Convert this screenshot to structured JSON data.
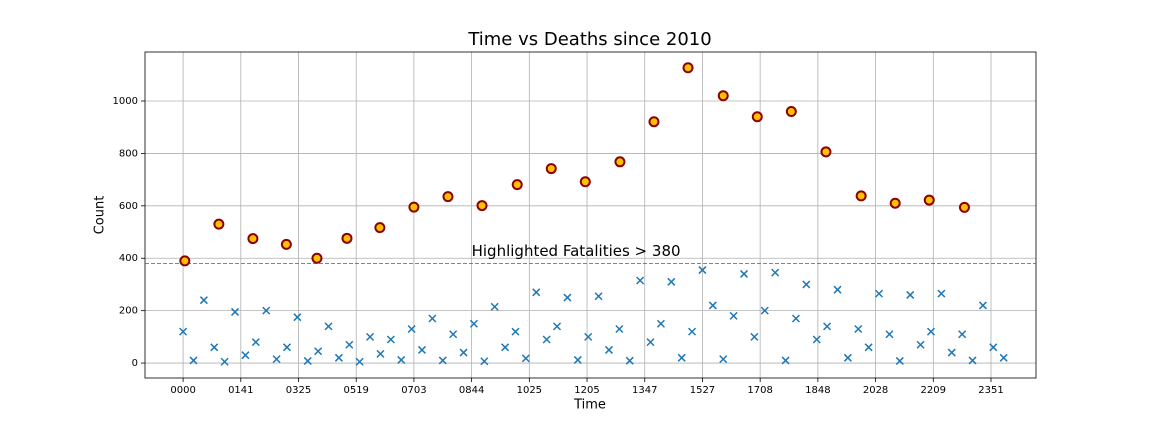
{
  "chart_data": {
    "type": "scatter",
    "title": "Time vs Deaths since 2010",
    "x_label": "Time",
    "y_label": "Count",
    "xlim": [
      -66,
      1478
    ],
    "ylim": [
      -57,
      1187
    ],
    "xticks": [
      {
        "value": 0,
        "label": "0000"
      },
      {
        "value": 100,
        "label": "0141"
      },
      {
        "value": 200,
        "label": "0325"
      },
      {
        "value": 300,
        "label": "0519"
      },
      {
        "value": 400,
        "label": "0703"
      },
      {
        "value": 500,
        "label": "0844"
      },
      {
        "value": 600,
        "label": "1025"
      },
      {
        "value": 700,
        "label": "1205"
      },
      {
        "value": 800,
        "label": "1347"
      },
      {
        "value": 900,
        "label": "1527"
      },
      {
        "value": 1000,
        "label": "1708"
      },
      {
        "value": 1100,
        "label": "1848"
      },
      {
        "value": 1200,
        "label": "2028"
      },
      {
        "value": 1300,
        "label": "2209"
      },
      {
        "value": 1400,
        "label": "2351"
      }
    ],
    "yticks": [
      0,
      200,
      400,
      600,
      800,
      1000
    ],
    "grid": true,
    "threshold": {
      "value": 380,
      "color": "#d62728",
      "label": "Highlighted Fatalities > 380",
      "label_color": "#8b0000"
    },
    "series": [
      {
        "marker": "x",
        "color": "#1f77b4",
        "x": [
          0,
          18,
          36,
          54,
          72,
          90,
          108,
          126,
          144,
          162,
          180,
          198,
          216,
          234,
          252,
          270,
          288,
          306,
          324,
          342,
          360,
          378,
          396,
          414,
          432,
          450,
          468,
          486,
          504,
          522,
          540,
          558,
          576,
          594,
          612,
          630,
          648,
          666,
          684,
          702,
          720,
          738,
          756,
          774,
          792,
          810,
          828,
          846,
          864,
          882,
          900,
          918,
          936,
          954,
          972,
          990,
          1008,
          1026,
          1044,
          1062,
          1080,
          1098,
          1116,
          1134,
          1152,
          1170,
          1188,
          1206,
          1224,
          1242,
          1260,
          1278,
          1296,
          1314,
          1332,
          1350,
          1368,
          1386,
          1404,
          1422
        ],
        "values": [
          120,
          10,
          240,
          60,
          5,
          195,
          30,
          80,
          200,
          15,
          60,
          175,
          8,
          45,
          140,
          20,
          70,
          5,
          100,
          35,
          90,
          12,
          130,
          50,
          170,
          10,
          110,
          40,
          150,
          7,
          215,
          60,
          120,
          18,
          270,
          90,
          140,
          250,
          12,
          100,
          255,
          50,
          130,
          9,
          315,
          80,
          150,
          310,
          20,
          120,
          355,
          220,
          15,
          180,
          340,
          100,
          200,
          345,
          10,
          170,
          300,
          90,
          140,
          280,
          20,
          130,
          60,
          265,
          110,
          8,
          260,
          70,
          120,
          265,
          40,
          110,
          10,
          220,
          60,
          20
        ]
      },
      {
        "marker": "circle",
        "color": "#ffc000",
        "edge_color": "#8b0000",
        "x": [
          3,
          62,
          121,
          179,
          232,
          284,
          341,
          400,
          459,
          518,
          579,
          638,
          697,
          757,
          816,
          875,
          936,
          995,
          1054,
          1114,
          1175,
          1234,
          1293,
          1354
        ],
        "values": [
          390,
          530,
          475,
          453,
          400,
          476,
          517,
          595,
          635,
          601,
          681,
          742,
          692,
          768,
          921,
          1127,
          1020,
          940,
          960,
          806,
          638,
          610,
          622,
          594
        ]
      }
    ]
  }
}
